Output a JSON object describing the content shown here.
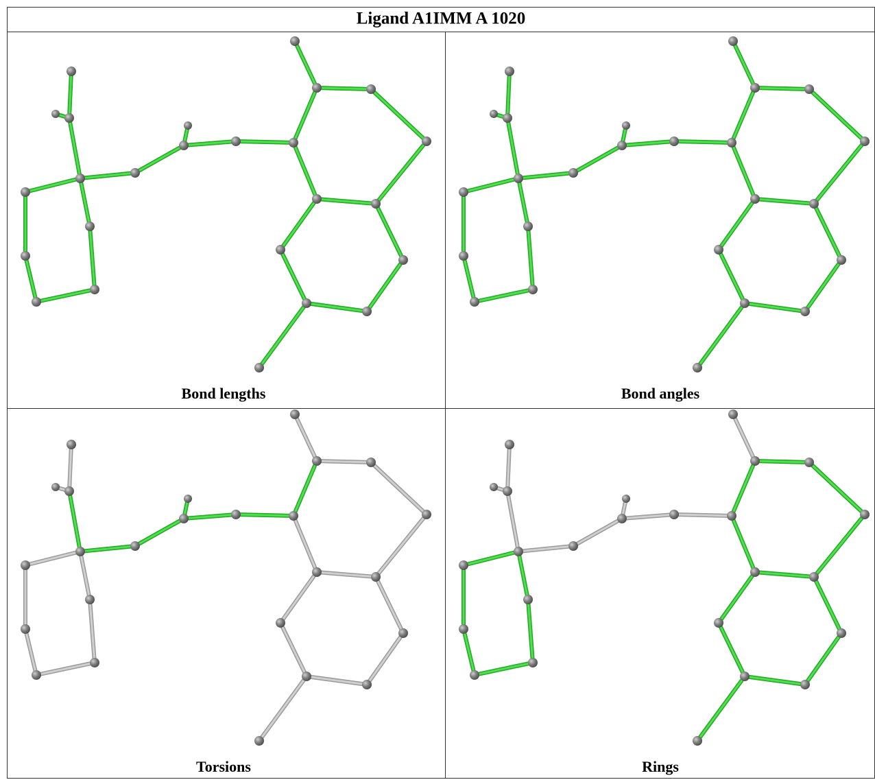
{
  "title": "Ligand A1IMM A 1020",
  "panels": [
    {
      "caption": "Bond lengths"
    },
    {
      "caption": "Bond angles"
    },
    {
      "caption": "Torsions"
    },
    {
      "caption": "Rings"
    }
  ]
}
